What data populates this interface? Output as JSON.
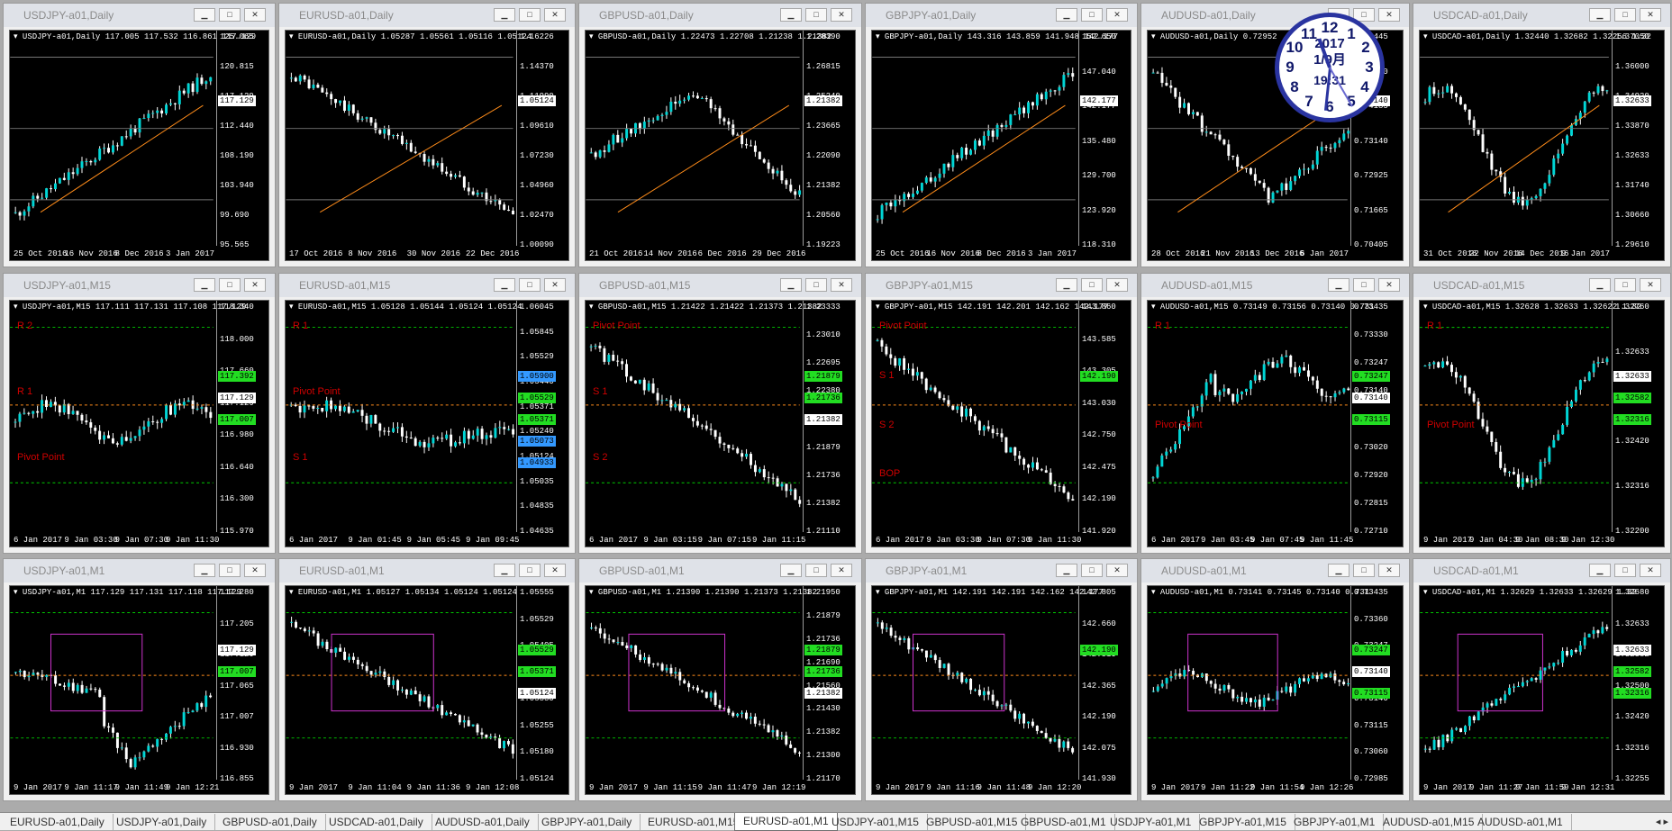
{
  "colors": {
    "bull": "#00d5d5",
    "bear": "#ffffff",
    "pivot": "#d00000",
    "support": "#ff8c1a",
    "resist": "#00cc00",
    "magenta": "#d033d0",
    "yellow": "#e8e000"
  },
  "window_buttons": {
    "minimize": "▁",
    "maximize": "□",
    "close": "✕"
  },
  "charts": [
    {
      "title": "USDJPY-a01,Daily",
      "info": "USDJPY-a01,Daily  117.005 117.532 116.861 117.129",
      "prices": [
        "125.065",
        "120.815",
        "117.129",
        "112.440",
        "108.190",
        "103.940",
        "99.690",
        "95.565"
      ],
      "times": [
        "25 Oct 2016",
        "16 Nov 2016",
        "8 Dec 2016",
        "3 Jan 2017"
      ],
      "tags": [
        {
          "text": "117.129",
          "bg": "#ffffff",
          "fg": "#000"
        }
      ],
      "levels": [],
      "trend": "up"
    },
    {
      "title": "EURUSD-a01,Daily",
      "info": "EURUSD-a01,Daily  1.05287 1.05561 1.05116 1.05124",
      "prices": [
        "1.16226",
        "1.14370",
        "1.11990",
        "1.09610",
        "1.07230",
        "1.04960",
        "1.02470",
        "1.00090"
      ],
      "times": [
        "17 Oct 2016",
        "8 Nov 2016",
        "30 Nov 2016",
        "22 Dec 2016"
      ],
      "tags": [
        {
          "text": "1.05124",
          "bg": "#ffffff",
          "fg": "#000"
        }
      ],
      "levels": [],
      "trend": "down"
    },
    {
      "title": "GBPUSD-a01,Daily",
      "info": "GBPUSD-a01,Daily  1.22473 1.22708 1.21238 1.21382",
      "prices": [
        "1.28390",
        "1.26815",
        "1.25240",
        "1.23665",
        "1.22090",
        "1.21382",
        "1.20560",
        "1.19223"
      ],
      "times": [
        "21 Oct 2016",
        "14 Nov 2016",
        "6 Dec 2016",
        "29 Dec 2016"
      ],
      "tags": [
        {
          "text": "1.21382",
          "bg": "#ffffff",
          "fg": "#000"
        }
      ],
      "levels": [],
      "trend": "humpdown"
    },
    {
      "title": "GBPJPY-a01,Daily",
      "info": "GBPJPY-a01,Daily  143.316 143.859 141.948 142.177",
      "prices": [
        "152.650",
        "147.040",
        "142.177",
        "135.480",
        "129.700",
        "123.920",
        "118.310"
      ],
      "times": [
        "25 Oct 2016",
        "16 Nov 2016",
        "8 Dec 2016",
        "3 Jan 2017"
      ],
      "tags": [
        {
          "text": "142.177",
          "bg": "#ffffff",
          "fg": "#000"
        }
      ],
      "levels": [],
      "trend": "up"
    },
    {
      "title": "AUDUSD-a01,Daily",
      "info": "AUDUSD-a01,Daily  0.72952",
      "prices": [
        "0.76445",
        "0.75640",
        "0.74185",
        "0.73140",
        "0.72925",
        "0.71665",
        "0.70405"
      ],
      "times": [
        "28 Oct 2016",
        "21 Nov 2016",
        "13 Dec 2016",
        "6 Jan 2017"
      ],
      "tags": [
        {
          "text": "0.73140",
          "bg": "#ffffff",
          "fg": "#000"
        }
      ],
      "levels": [],
      "trend": "vdown"
    },
    {
      "title": "USDCAD-a01,Daily",
      "info": "USDCAD-a01,Daily  1.32440 1.32682 1.32256 1.32",
      "prices": [
        "1.37050",
        "1.36000",
        "1.34920",
        "1.33870",
        "1.32633",
        "1.31740",
        "1.30660",
        "1.29610"
      ],
      "times": [
        "31 Oct 2016",
        "22 Nov 2016",
        "14 Dec 2016",
        "9 Jan 2017"
      ],
      "tags": [
        {
          "text": "1.32633",
          "bg": "#ffffff",
          "fg": "#000"
        }
      ],
      "levels": [],
      "trend": "wave"
    },
    {
      "title": "USDJPY-a01,M15",
      "info": "USDJPY-a01,M15  117.111 117.131 117.108 117.129",
      "prices": [
        "118.340",
        "118.000",
        "117.660",
        "117.129",
        "116.980",
        "116.640",
        "116.300",
        "115.970"
      ],
      "times": [
        "6 Jan 2017",
        "9 Jan 03:30",
        "9 Jan 07:30",
        "9 Jan 11:30"
      ],
      "tags": [
        {
          "text": "117.392",
          "bg": "#22dd22",
          "fg": "#000"
        },
        {
          "text": "117.129",
          "bg": "#ffffff",
          "fg": "#000"
        },
        {
          "text": "117.007",
          "bg": "#22dd22",
          "fg": "#000"
        }
      ],
      "levels": [
        {
          "text": "R 2",
          "color": "#d00000"
        },
        {
          "text": "R 1",
          "color": "#d00000"
        },
        {
          "text": "Pivot Point",
          "color": "#d00000"
        }
      ],
      "trend": "flat"
    },
    {
      "title": "EURUSD-a01,M15",
      "info": "EURUSD-a01,M15  1.05128 1.05144 1.05124 1.05124",
      "prices": [
        "1.06045",
        "1.05845",
        "1.05529",
        "1.05440",
        "1.05371",
        "1.05240",
        "1.05124",
        "1.05035",
        "1.04835",
        "1.04635"
      ],
      "times": [
        "6 Jan 2017",
        "9 Jan 01:45",
        "9 Jan 05:45",
        "9 Jan 09:45"
      ],
      "tags": [
        {
          "text": "1.05900",
          "bg": "#3399ff",
          "fg": "#000"
        },
        {
          "text": "1.05529",
          "bg": "#22dd22",
          "fg": "#000"
        },
        {
          "text": "1.05371",
          "bg": "#22dd22",
          "fg": "#000"
        },
        {
          "text": "1.05073",
          "bg": "#3399ff",
          "fg": "#000"
        },
        {
          "text": "1.04933",
          "bg": "#3399ff",
          "fg": "#000"
        }
      ],
      "levels": [
        {
          "text": "R 1",
          "color": "#d00000"
        },
        {
          "text": "Pivot Point",
          "color": "#d00000"
        },
        {
          "text": "S 1",
          "color": "#d00000"
        }
      ],
      "trend": "flatdown"
    },
    {
      "title": "GBPUSD-a01,M15",
      "info": "GBPUSD-a01,M15  1.21422 1.21422 1.21373 1.21382",
      "prices": [
        "1.23333",
        "1.23010",
        "1.22695",
        "1.22380",
        "1.22060",
        "1.21879",
        "1.21736",
        "1.21382",
        "1.21110"
      ],
      "times": [
        "6 Jan 2017",
        "9 Jan 03:15",
        "9 Jan 07:15",
        "9 Jan 11:15"
      ],
      "tags": [
        {
          "text": "1.21879",
          "bg": "#22dd22",
          "fg": "#000"
        },
        {
          "text": "1.21736",
          "bg": "#22dd22",
          "fg": "#000"
        },
        {
          "text": "1.21382",
          "bg": "#ffffff",
          "fg": "#000"
        }
      ],
      "levels": [
        {
          "text": "Pivot Point",
          "color": "#d00000"
        },
        {
          "text": "S 1",
          "color": "#d00000"
        },
        {
          "text": "S 2",
          "color": "#d00000"
        }
      ],
      "trend": "down"
    },
    {
      "title": "GBPJPY-a01,M15",
      "info": "GBPJPY-a01,M15  142.191 142.201 142.162 142.177",
      "prices": [
        "143.860",
        "143.585",
        "143.305",
        "143.030",
        "142.750",
        "142.475",
        "142.190",
        "141.920"
      ],
      "times": [
        "6 Jan 2017",
        "9 Jan 03:30",
        "9 Jan 07:30",
        "9 Jan 11:30"
      ],
      "tags": [
        {
          "text": "142.190",
          "bg": "#22dd22",
          "fg": "#000"
        }
      ],
      "levels": [
        {
          "text": "Pivot Point",
          "color": "#d00000"
        },
        {
          "text": "S 1",
          "color": "#d00000"
        },
        {
          "text": "S 2",
          "color": "#d00000"
        },
        {
          "text": "BOP",
          "color": "#d00000"
        }
      ],
      "trend": "down"
    },
    {
      "title": "AUDUSD-a01,M15",
      "info": "AUDUSD-a01,M15  0.73149 0.73156 0.73140 0.731",
      "prices": [
        "0.73435",
        "0.73330",
        "0.73247",
        "0.73140",
        "0.73115",
        "0.73020",
        "0.72920",
        "0.72815",
        "0.72710"
      ],
      "times": [
        "6 Jan 2017",
        "9 Jan 03:45",
        "9 Jan 07:45",
        "9 Jan 11:45"
      ],
      "tags": [
        {
          "text": "0.73247",
          "bg": "#22dd22",
          "fg": "#000"
        },
        {
          "text": "0.73140",
          "bg": "#ffffff",
          "fg": "#000"
        },
        {
          "text": "0.73115",
          "bg": "#22dd22",
          "fg": "#000"
        }
      ],
      "levels": [
        {
          "text": "R 1",
          "color": "#d00000"
        },
        {
          "text": "Pivot Point",
          "color": "#d00000"
        }
      ],
      "trend": "upflat"
    },
    {
      "title": "USDCAD-a01,M15",
      "info": "USDCAD-a01,M15  1.32628 1.32633 1.32622 1.32",
      "prices": [
        "1.32760",
        "1.32633",
        "1.32582",
        "1.32420",
        "1.32316",
        "1.32200"
      ],
      "times": [
        "9 Jan 2017",
        "9 Jan 04:30",
        "9 Jan 08:30",
        "9 Jan 12:30"
      ],
      "tags": [
        {
          "text": "1.32633",
          "bg": "#ffffff",
          "fg": "#000"
        },
        {
          "text": "1.32582",
          "bg": "#22dd22",
          "fg": "#000"
        },
        {
          "text": "1.32316",
          "bg": "#22dd22",
          "fg": "#000"
        }
      ],
      "levels": [
        {
          "text": "R 1",
          "color": "#d00000"
        },
        {
          "text": "Pivot Point",
          "color": "#d00000"
        }
      ],
      "trend": "wave"
    },
    {
      "title": "USDJPY-a01,M1",
      "info": "USDJPY-a01,M1  117.129 117.131 117.118 117.129",
      "prices": [
        "117.280",
        "117.205",
        "117.129",
        "117.065",
        "117.007",
        "116.930",
        "116.855"
      ],
      "times": [
        "9 Jan 2017",
        "9 Jan 11:17",
        "9 Jan 11:49",
        "9 Jan 12:21"
      ],
      "tags": [
        {
          "text": "117.129",
          "bg": "#ffffff",
          "fg": "#000"
        },
        {
          "text": "117.007",
          "bg": "#22dd22",
          "fg": "#000"
        }
      ],
      "levels": [],
      "trend": "dip"
    },
    {
      "title": "EURUSD-a01,M1",
      "info": "EURUSD-a01,M1  1.05127 1.05134 1.05124 1.05124",
      "prices": [
        "1.05555",
        "1.05529",
        "1.05405",
        "1.05371",
        "1.05330",
        "1.05255",
        "1.05180",
        "1.05124"
      ],
      "times": [
        "9 Jan 2017",
        "9 Jan 11:04",
        "9 Jan 11:36",
        "9 Jan 12:08"
      ],
      "tags": [
        {
          "text": "1.05529",
          "bg": "#22dd22",
          "fg": "#000"
        },
        {
          "text": "1.05371",
          "bg": "#22dd22",
          "fg": "#000"
        },
        {
          "text": "1.05124",
          "bg": "#ffffff",
          "fg": "#000"
        }
      ],
      "levels": [],
      "trend": "down"
    },
    {
      "title": "GBPUSD-a01,M1",
      "info": "GBPUSD-a01,M1  1.21390 1.21390 1.21373 1.21382",
      "prices": [
        "1.21950",
        "1.21879",
        "1.21736",
        "1.21690",
        "1.21560",
        "1.21430",
        "1.21382",
        "1.21300",
        "1.21170"
      ],
      "times": [
        "9 Jan 2017",
        "9 Jan 11:15",
        "9 Jan 11:47",
        "9 Jan 12:19"
      ],
      "tags": [
        {
          "text": "1.21879",
          "bg": "#22dd22",
          "fg": "#000"
        },
        {
          "text": "1.21736",
          "bg": "#22dd22",
          "fg": "#000"
        },
        {
          "text": "1.21382",
          "bg": "#ffffff",
          "fg": "#000"
        }
      ],
      "levels": [],
      "trend": "down"
    },
    {
      "title": "GBPJPY-a01,M1",
      "info": "GBPJPY-a01,M1  142.191 142.191 142.162 142.177",
      "prices": [
        "142.805",
        "142.660",
        "142.510",
        "142.365",
        "142.190",
        "142.075",
        "141.930"
      ],
      "times": [
        "9 Jan 2017",
        "9 Jan 11:16",
        "9 Jan 11:48",
        "9 Jan 12:20"
      ],
      "tags": [
        {
          "text": "142.190",
          "bg": "#22dd22",
          "fg": "#000"
        }
      ],
      "levels": [],
      "trend": "down"
    },
    {
      "title": "AUDUSD-a01,M1",
      "info": "AUDUSD-a01,M1  0.73141 0.73145 0.73140 0.731",
      "prices": [
        "0.73435",
        "0.73360",
        "0.73247",
        "0.73210",
        "0.73140",
        "0.73115",
        "0.73060",
        "0.72985"
      ],
      "times": [
        "9 Jan 2017",
        "9 Jan 11:22",
        "9 Jan 11:54",
        "9 Jan 12:26"
      ],
      "tags": [
        {
          "text": "0.73247",
          "bg": "#22dd22",
          "fg": "#000"
        },
        {
          "text": "0.73140",
          "bg": "#ffffff",
          "fg": "#000"
        },
        {
          "text": "0.73115",
          "bg": "#22dd22",
          "fg": "#000"
        }
      ],
      "levels": [],
      "trend": "flat"
    },
    {
      "title": "USDCAD-a01,M1",
      "info": "USDCAD-a01,M1  1.32629 1.32633 1.32629 1.32",
      "prices": [
        "1.32680",
        "1.32633",
        "1.32582",
        "1.32500",
        "1.32420",
        "1.32316",
        "1.32255"
      ],
      "times": [
        "9 Jan 2017",
        "9 Jan 11:27",
        "9 Jan 11:59",
        "9 Jan 12:31"
      ],
      "tags": [
        {
          "text": "1.32633",
          "bg": "#ffffff",
          "fg": "#000"
        },
        {
          "text": "1.32582",
          "bg": "#22dd22",
          "fg": "#000"
        },
        {
          "text": "1.32316",
          "bg": "#22dd22",
          "fg": "#000"
        }
      ],
      "levels": [],
      "trend": "up"
    }
  ],
  "clock": {
    "year": "2017",
    "date": "1/9月",
    "time": "19:31"
  },
  "tabs": [
    "EURUSD-a01,Daily",
    "USDJPY-a01,Daily",
    "GBPUSD-a01,Daily",
    "USDCAD-a01,Daily",
    "AUDUSD-a01,Daily",
    "GBPJPY-a01,Daily",
    "EURUSD-a01,M15",
    "EURUSD-a01,M1",
    "USDJPY-a01,M15",
    "GBPUSD-a01,M15",
    "GBPUSD-a01,M1",
    "USDJPY-a01,M1",
    "GBPJPY-a01,M15",
    "GBPJPY-a01,M1",
    "AUDUSD-a01,M15",
    "AUDUSD-a01,M1"
  ],
  "active_tab": 7,
  "tab_arrows": "◂ ▸"
}
